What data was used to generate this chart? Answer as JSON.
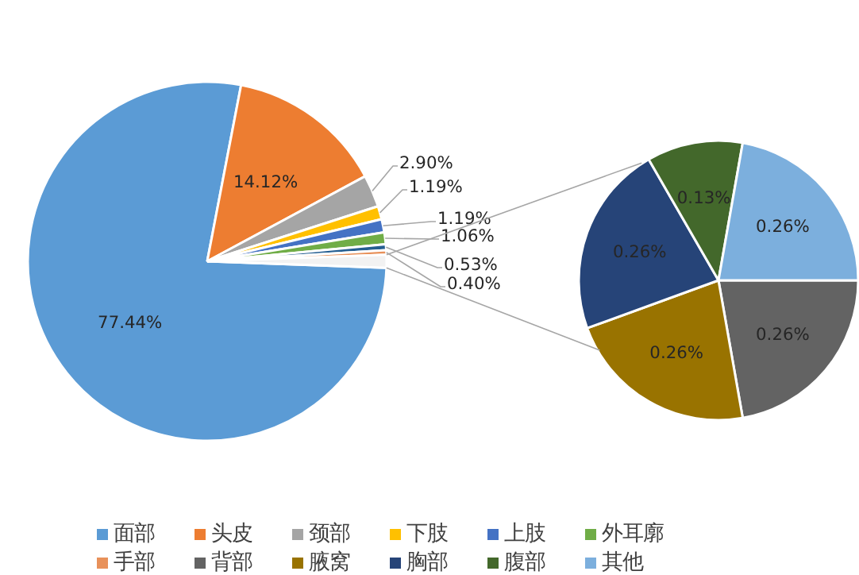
{
  "chart_data": [
    {
      "type": "pie",
      "categories": [
        "面部",
        "头皮",
        "颈部",
        "下肢",
        "上肢",
        "外耳廓",
        null,
        "手部",
        null
      ],
      "values": [
        77.44,
        14.12,
        2.9,
        1.19,
        1.19,
        1.06,
        0.53,
        0.4,
        1.17
      ],
      "colors": [
        "#5b9bd5",
        "#ed7d31",
        "#a5a5a5",
        "#ffc000",
        "#4472c4",
        "#70ad47",
        "#255e91",
        "#e8915a",
        "#f2f2f2"
      ],
      "value_labels": [
        "77.44%",
        "14.12%",
        "2.90%",
        "1.19%",
        "1.19%",
        "1.06%",
        "0.53%",
        "0.40%",
        null
      ],
      "legend": "bottom"
    },
    {
      "type": "pie",
      "categories": [
        "背部",
        "腋窝",
        "胸部",
        "腹部",
        "其他"
      ],
      "values": [
        0.26,
        0.26,
        0.26,
        0.13,
        0.26
      ],
      "colors": [
        "#636363",
        "#997300",
        "#264478",
        "#43682b",
        "#7cafdd"
      ],
      "value_labels": [
        "0.26%",
        "0.26%",
        "0.26%",
        "0.13%",
        "0.26%"
      ],
      "legend": "bottom"
    }
  ]
}
